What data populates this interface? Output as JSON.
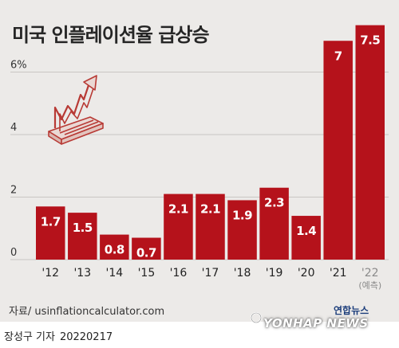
{
  "chart_data": {
    "type": "bar",
    "title": "미국 인플레이션율 급상승",
    "categories": [
      "'12",
      "'13",
      "'14",
      "'15",
      "'16",
      "'17",
      "'18",
      "'19",
      "'20",
      "'21",
      "'22"
    ],
    "category_notes": [
      "",
      "",
      "",
      "",
      "",
      "",
      "",
      "",
      "",
      "",
      "(예측)"
    ],
    "values": [
      1.7,
      1.5,
      0.8,
      0.7,
      2.1,
      2.1,
      1.9,
      2.3,
      1.4,
      7,
      7.5
    ],
    "value_labels": [
      "1.7",
      "1.5",
      "0.8",
      "0.7",
      "2.1",
      "2.1",
      "1.9",
      "2.3",
      "1.4",
      "7",
      "7.5"
    ],
    "y_ticks": [
      0,
      2,
      4,
      6
    ],
    "y_tick_labels": [
      "0",
      "2",
      "4",
      "6%"
    ],
    "ylim": [
      0,
      7.5
    ],
    "grid": true,
    "bar_color": "#b5121b"
  },
  "footer": {
    "source": "자료/ usinflationcalculator.com",
    "reporter": "장성구 기자",
    "date": "20220217",
    "brand_ko": "연합뉴스",
    "brand_en": "YONHAP NEWS"
  },
  "icons": [
    "rising-arrow-illustration-icon",
    "yonhap-logo-icon"
  ]
}
